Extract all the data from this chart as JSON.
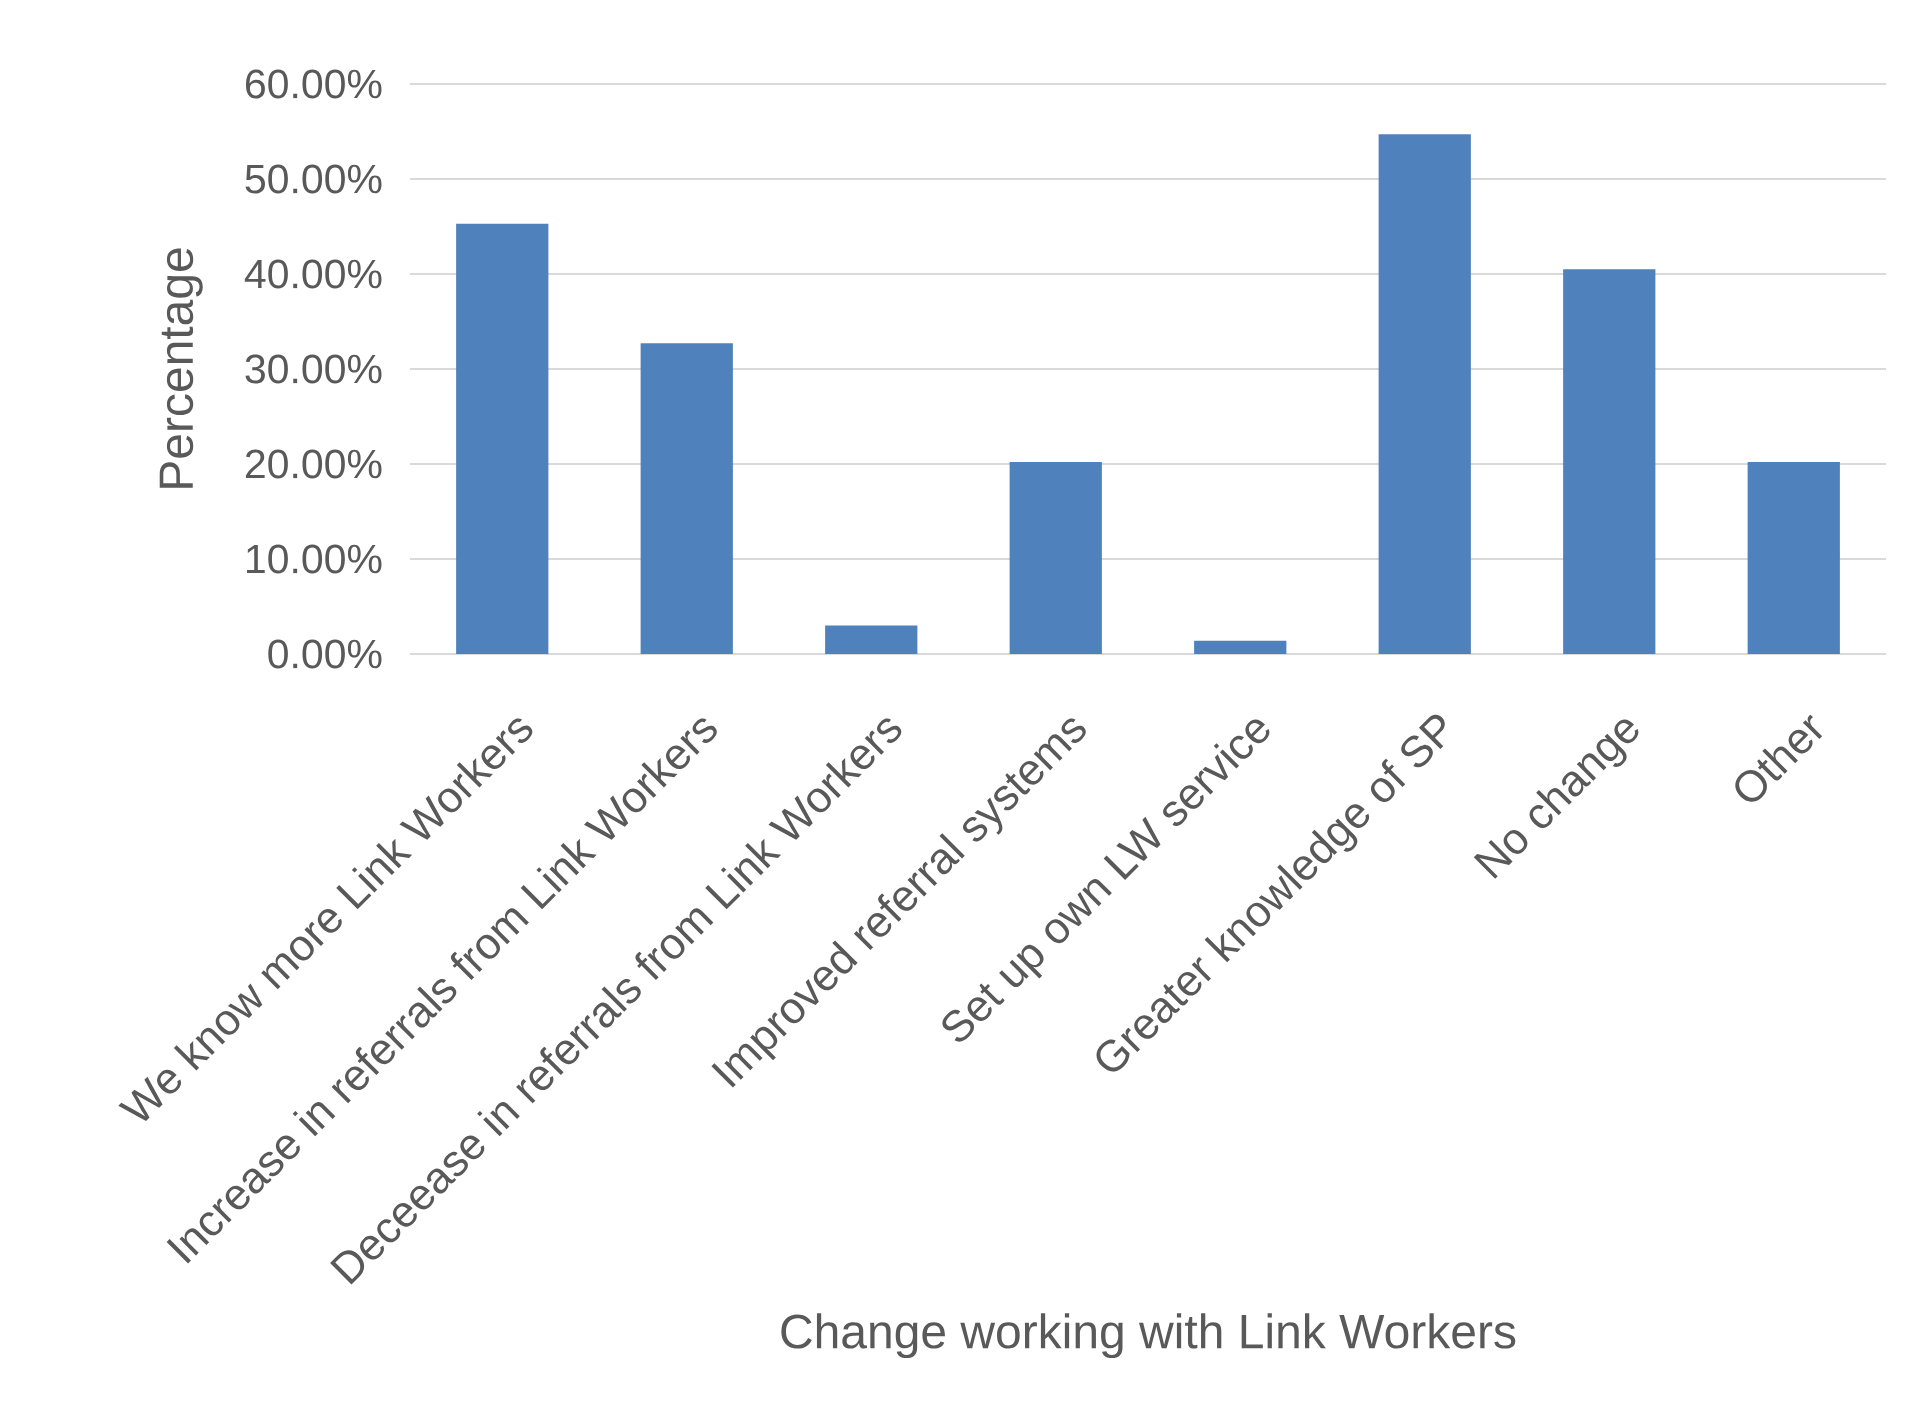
{
  "chart_data": {
    "type": "bar",
    "xlabel": "Change working with Link Workers",
    "ylabel": "Percentage",
    "categories": [
      "We know more Link Workers",
      "Increase in referrals from Link Workers",
      "Deceease in referrals from Link Workers",
      "Improved referral systems",
      "Set up own LW service",
      "Greater knowledge of SP",
      "No change",
      "Other"
    ],
    "values": [
      45.3,
      32.7,
      3.0,
      20.2,
      1.4,
      54.7,
      40.5,
      20.2
    ],
    "color": "#4f81bd",
    "ylim": [
      0,
      60
    ],
    "yticks": [
      {
        "value": 0,
        "label": "0.00%"
      },
      {
        "value": 10,
        "label": "10.00%"
      },
      {
        "value": 20,
        "label": "20.00%"
      },
      {
        "value": 30,
        "label": "30.00%"
      },
      {
        "value": 40,
        "label": "40.00%"
      },
      {
        "value": 50,
        "label": "50.00%"
      },
      {
        "value": 60,
        "label": "60.00%"
      }
    ],
    "grid": "y"
  }
}
